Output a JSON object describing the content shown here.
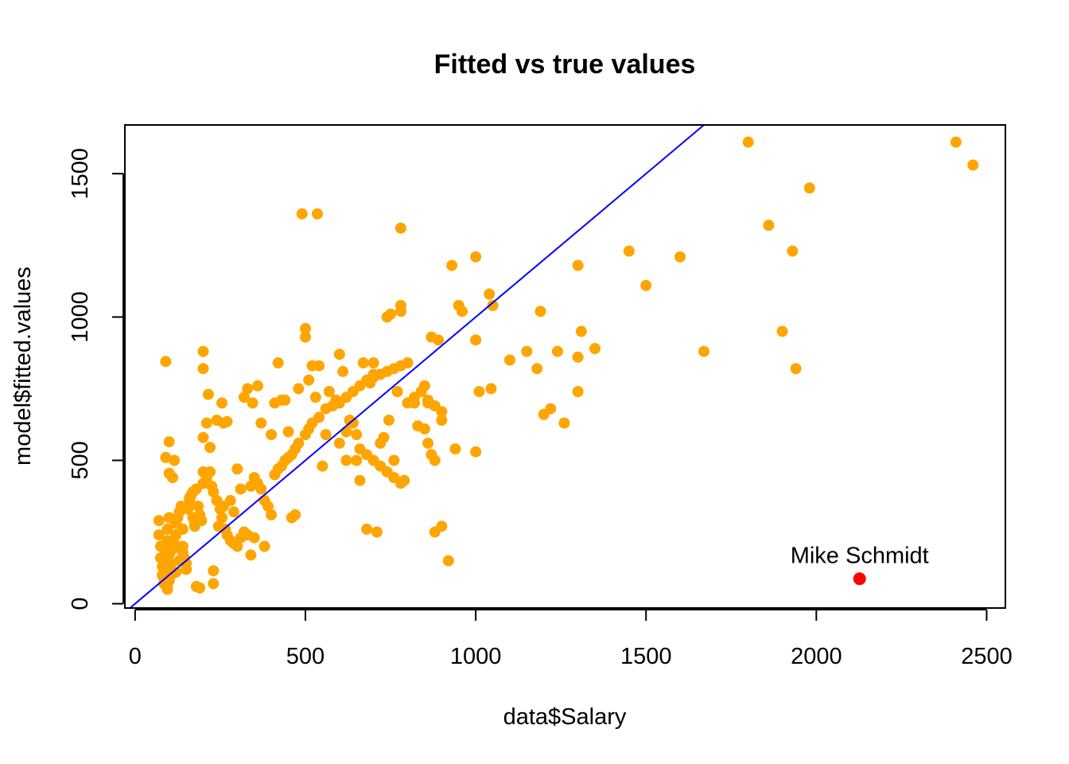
{
  "chart_data": {
    "type": "scatter",
    "title": "Fitted vs true values",
    "xlabel": "data$Salary",
    "ylabel": "model$fitted.values",
    "xlim": [
      -30,
      2555
    ],
    "ylim": [
      -15,
      1670
    ],
    "xticks": [
      "0",
      "500",
      "1000",
      "1500",
      "2000",
      "2500"
    ],
    "yticks": [
      "0",
      "500",
      "1000",
      "1500"
    ],
    "grid": false,
    "legend": "none",
    "point_color": "#FFA500",
    "highlight_color": "#FF0000",
    "line_color": "#0000FF",
    "reference_line": {
      "intercept": 0,
      "slope": 1
    },
    "points": [
      [
        70,
        290
      ],
      [
        70,
        240
      ],
      [
        75,
        200
      ],
      [
        75,
        160
      ],
      [
        80,
        130
      ],
      [
        80,
        100
      ],
      [
        85,
        90
      ],
      [
        85,
        70
      ],
      [
        90,
        180
      ],
      [
        90,
        140
      ],
      [
        95,
        220
      ],
      [
        95,
        260
      ],
      [
        100,
        300
      ],
      [
        100,
        200
      ],
      [
        100,
        170
      ],
      [
        100,
        110
      ],
      [
        100,
        80
      ],
      [
        105,
        140
      ],
      [
        110,
        190
      ],
      [
        115,
        210
      ],
      [
        120,
        240
      ],
      [
        120,
        280
      ],
      [
        125,
        300
      ],
      [
        130,
        320
      ],
      [
        135,
        340
      ],
      [
        140,
        260
      ],
      [
        140,
        200
      ],
      [
        145,
        160
      ],
      [
        150,
        140
      ],
      [
        150,
        120
      ],
      [
        155,
        330
      ],
      [
        160,
        360
      ],
      [
        165,
        380
      ],
      [
        170,
        300
      ],
      [
        175,
        270
      ],
      [
        180,
        400
      ],
      [
        185,
        340
      ],
      [
        190,
        310
      ],
      [
        195,
        290
      ],
      [
        200,
        420
      ],
      [
        200,
        460
      ],
      [
        210,
        440
      ],
      [
        220,
        460
      ],
      [
        225,
        410
      ],
      [
        230,
        390
      ],
      [
        240,
        360
      ],
      [
        250,
        330
      ],
      [
        255,
        300
      ],
      [
        260,
        340
      ],
      [
        265,
        260
      ],
      [
        270,
        240
      ],
      [
        280,
        220
      ],
      [
        290,
        210
      ],
      [
        300,
        200
      ],
      [
        310,
        230
      ],
      [
        320,
        250
      ],
      [
        330,
        240
      ],
      [
        340,
        410
      ],
      [
        350,
        440
      ],
      [
        360,
        420
      ],
      [
        370,
        400
      ],
      [
        380,
        360
      ],
      [
        390,
        340
      ],
      [
        400,
        310
      ],
      [
        410,
        450
      ],
      [
        420,
        470
      ],
      [
        430,
        480
      ],
      [
        440,
        500
      ],
      [
        450,
        510
      ],
      [
        460,
        520
      ],
      [
        470,
        540
      ],
      [
        480,
        560
      ],
      [
        500,
        590
      ],
      [
        510,
        610
      ],
      [
        520,
        630
      ],
      [
        540,
        650
      ],
      [
        560,
        680
      ],
      [
        580,
        690
      ],
      [
        600,
        700
      ],
      [
        620,
        720
      ],
      [
        640,
        740
      ],
      [
        660,
        760
      ],
      [
        680,
        780
      ],
      [
        700,
        790
      ],
      [
        720,
        800
      ],
      [
        740,
        810
      ],
      [
        760,
        820
      ],
      [
        780,
        830
      ],
      [
        800,
        840
      ],
      [
        600,
        560
      ],
      [
        620,
        600
      ],
      [
        640,
        630
      ],
      [
        650,
        590
      ],
      [
        660,
        540
      ],
      [
        680,
        520
      ],
      [
        700,
        500
      ],
      [
        720,
        480
      ],
      [
        740,
        460
      ],
      [
        760,
        440
      ],
      [
        780,
        420
      ],
      [
        800,
        700
      ],
      [
        820,
        720
      ],
      [
        840,
        740
      ],
      [
        860,
        710
      ],
      [
        880,
        690
      ],
      [
        900,
        670
      ],
      [
        850,
        610
      ],
      [
        860,
        560
      ],
      [
        870,
        520
      ],
      [
        880,
        500
      ],
      [
        90,
        845
      ],
      [
        90,
        510
      ],
      [
        100,
        565
      ],
      [
        100,
        455
      ],
      [
        110,
        440
      ],
      [
        115,
        500
      ],
      [
        95,
        50
      ],
      [
        95,
        65
      ],
      [
        105,
        100
      ],
      [
        120,
        110
      ],
      [
        130,
        150
      ],
      [
        140,
        180
      ],
      [
        150,
        120
      ],
      [
        160,
        370
      ],
      [
        170,
        390
      ],
      [
        175,
        280
      ],
      [
        180,
        60
      ],
      [
        190,
        55
      ],
      [
        200,
        820
      ],
      [
        200,
        880
      ],
      [
        200,
        580
      ],
      [
        210,
        630
      ],
      [
        215,
        730
      ],
      [
        220,
        545
      ],
      [
        230,
        115
      ],
      [
        230,
        70
      ],
      [
        240,
        640
      ],
      [
        245,
        270
      ],
      [
        255,
        700
      ],
      [
        260,
        630
      ],
      [
        270,
        635
      ],
      [
        280,
        360
      ],
      [
        290,
        320
      ],
      [
        300,
        470
      ],
      [
        310,
        400
      ],
      [
        320,
        720
      ],
      [
        330,
        750
      ],
      [
        340,
        170
      ],
      [
        345,
        700
      ],
      [
        350,
        230
      ],
      [
        360,
        760
      ],
      [
        370,
        630
      ],
      [
        380,
        200
      ],
      [
        400,
        590
      ],
      [
        410,
        700
      ],
      [
        420,
        840
      ],
      [
        430,
        710
      ],
      [
        440,
        710
      ],
      [
        450,
        600
      ],
      [
        460,
        300
      ],
      [
        470,
        310
      ],
      [
        480,
        750
      ],
      [
        490,
        1360
      ],
      [
        500,
        960
      ],
      [
        500,
        930
      ],
      [
        510,
        780
      ],
      [
        520,
        830
      ],
      [
        530,
        720
      ],
      [
        535,
        1360
      ],
      [
        540,
        830
      ],
      [
        550,
        480
      ],
      [
        560,
        590
      ],
      [
        570,
        740
      ],
      [
        590,
        710
      ],
      [
        600,
        870
      ],
      [
        610,
        810
      ],
      [
        620,
        500
      ],
      [
        630,
        640
      ],
      [
        650,
        500
      ],
      [
        660,
        430
      ],
      [
        670,
        840
      ],
      [
        680,
        260
      ],
      [
        690,
        770
      ],
      [
        700,
        840
      ],
      [
        700,
        800
      ],
      [
        710,
        250
      ],
      [
        720,
        560
      ],
      [
        730,
        580
      ],
      [
        740,
        1000
      ],
      [
        745,
        640
      ],
      [
        750,
        1010
      ],
      [
        760,
        500
      ],
      [
        770,
        740
      ],
      [
        780,
        1040
      ],
      [
        780,
        1020
      ],
      [
        780,
        1310
      ],
      [
        790,
        430
      ],
      [
        800,
        840
      ],
      [
        820,
        700
      ],
      [
        830,
        620
      ],
      [
        850,
        760
      ],
      [
        860,
        700
      ],
      [
        870,
        930
      ],
      [
        880,
        250
      ],
      [
        890,
        920
      ],
      [
        900,
        640
      ],
      [
        900,
        270
      ],
      [
        920,
        150
      ],
      [
        930,
        1180
      ],
      [
        940,
        540
      ],
      [
        950,
        1040
      ],
      [
        960,
        1020
      ],
      [
        1000,
        1210
      ],
      [
        1000,
        920
      ],
      [
        1000,
        530
      ],
      [
        1010,
        740
      ],
      [
        1040,
        1080
      ],
      [
        1050,
        1040
      ],
      [
        1045,
        750
      ],
      [
        1100,
        850
      ],
      [
        1150,
        880
      ],
      [
        1180,
        820
      ],
      [
        1190,
        1020
      ],
      [
        1200,
        660
      ],
      [
        1220,
        680
      ],
      [
        1240,
        880
      ],
      [
        1260,
        630
      ],
      [
        1300,
        1180
      ],
      [
        1300,
        860
      ],
      [
        1300,
        740
      ],
      [
        1310,
        950
      ],
      [
        1350,
        890
      ],
      [
        1450,
        1230
      ],
      [
        1500,
        1110
      ],
      [
        1600,
        1210
      ],
      [
        1670,
        880
      ],
      [
        1800,
        1610
      ],
      [
        1860,
        1320
      ],
      [
        1900,
        950
      ],
      [
        1930,
        1230
      ],
      [
        1940,
        820
      ],
      [
        1980,
        1450
      ],
      [
        2410,
        1610
      ],
      [
        2460,
        1530
      ]
    ],
    "highlight": {
      "label": "Mike Schmidt",
      "x": 2127,
      "y": 87
    }
  }
}
